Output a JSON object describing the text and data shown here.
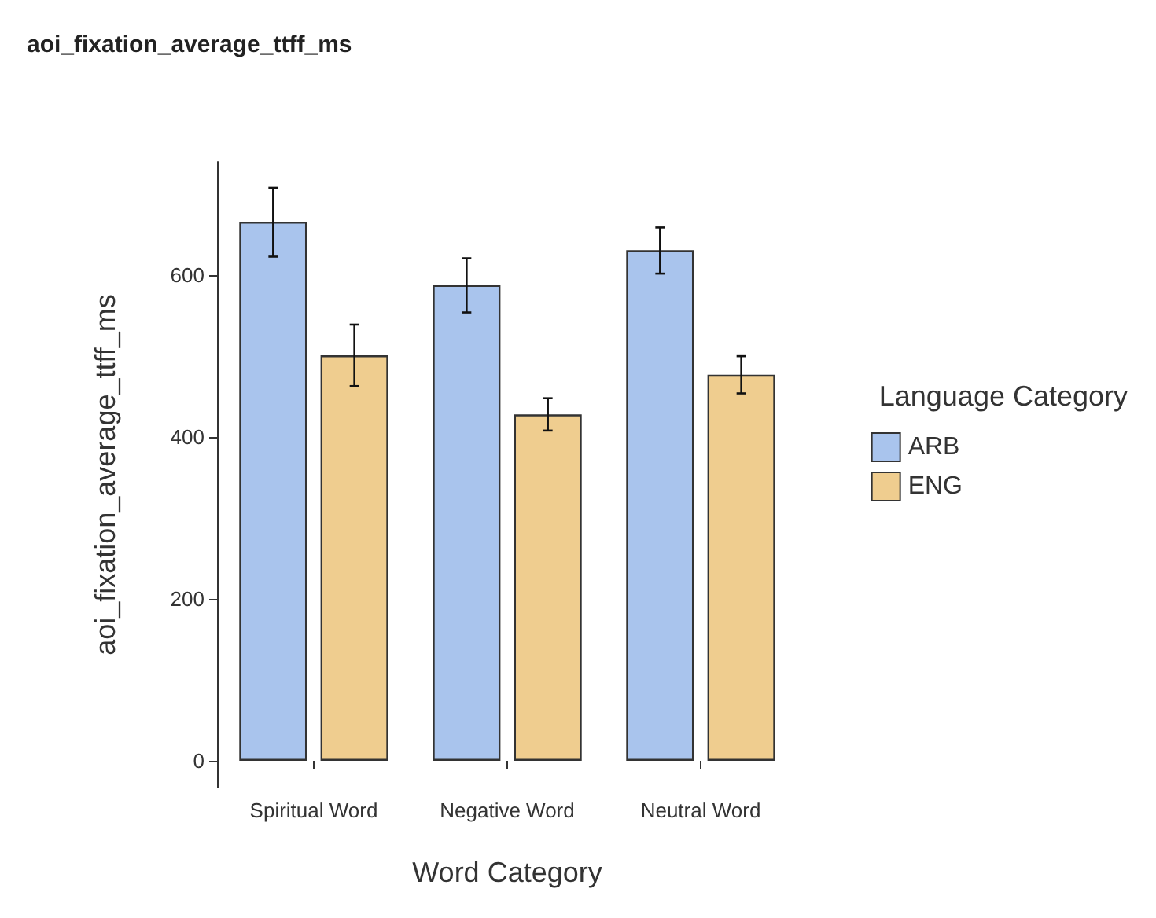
{
  "chart_data": {
    "type": "bar",
    "title": "aoi_fixation_average_ttff_ms",
    "xlabel": "Word Category",
    "ylabel": "aoi_fixation_average_ttff_ms",
    "legend_title": "Language Category",
    "categories": [
      "Spiritual Word",
      "Negative Word",
      "Neutral Word"
    ],
    "series": [
      {
        "name": "ARB",
        "color": "#a9c4ed",
        "values": [
          666,
          588,
          631
        ],
        "errors": [
          [
            623,
            708
          ],
          [
            554,
            621
          ],
          [
            602,
            659
          ]
        ]
      },
      {
        "name": "ENG",
        "color": "#efcd8f",
        "values": [
          501,
          428,
          477
        ],
        "errors": [
          [
            463,
            539
          ],
          [
            408,
            448
          ],
          [
            454,
            500
          ]
        ]
      }
    ],
    "ylim": [
      -33,
      740
    ],
    "yticks": [
      0,
      200,
      400,
      600
    ],
    "grid": false,
    "legend": "right"
  }
}
